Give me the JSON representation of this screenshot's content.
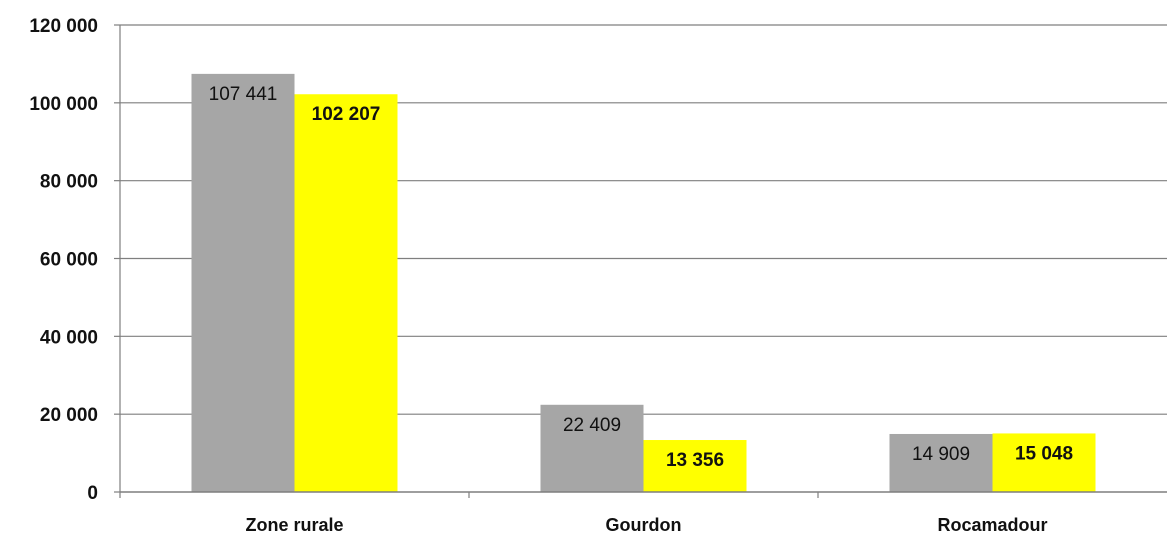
{
  "chart_data": {
    "type": "bar",
    "categories": [
      "Zone rurale",
      "Gourdon",
      "Rocamadour"
    ],
    "series": [
      {
        "values": [
          107441,
          22409,
          14909
        ],
        "labels": [
          "107 441",
          "22 409",
          "14 909"
        ],
        "color": "#a6a6a6"
      },
      {
        "values": [
          102207,
          13356,
          15048
        ],
        "labels": [
          "102 207",
          "13 356",
          "15 048"
        ],
        "color": "#ffff00"
      }
    ],
    "y_ticks": [
      {
        "value": 0,
        "label": "0"
      },
      {
        "value": 20000,
        "label": "20 000"
      },
      {
        "value": 40000,
        "label": "40 000"
      },
      {
        "value": 60000,
        "label": "60 000"
      },
      {
        "value": 80000,
        "label": "80 000"
      },
      {
        "value": 100000,
        "label": "100 000"
      },
      {
        "value": 120000,
        "label": "120 000"
      }
    ],
    "ylim": [
      0,
      120000
    ],
    "grid": true,
    "legend": "none"
  }
}
